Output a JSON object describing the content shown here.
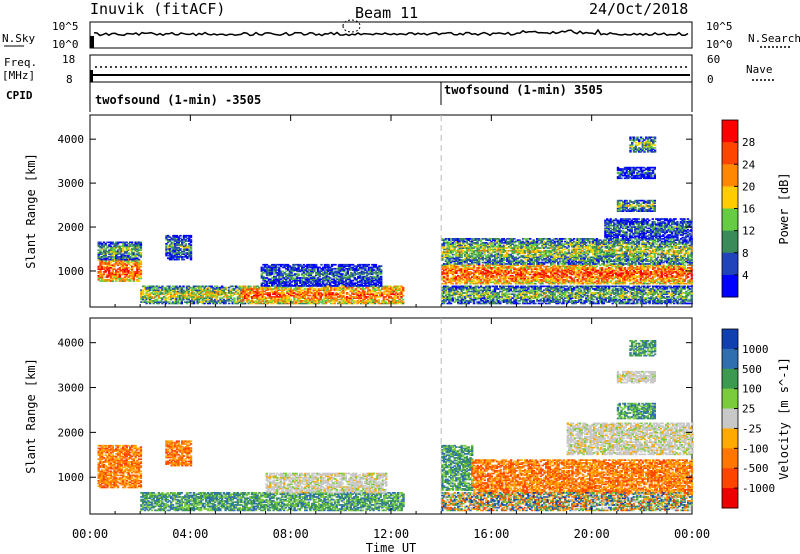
{
  "header": {
    "station": "Inuvik (fitACF)",
    "beam": "Beam 11",
    "date": "24/Oct/2018"
  },
  "panels": {
    "nsky": {
      "left_label": "N.Sky",
      "left_ticks": [
        "10^5",
        "10^0"
      ],
      "right_ticks": [
        "10^5",
        "10^0"
      ],
      "right_label": "N.Search"
    },
    "freq": {
      "left_label_1": "Freq.",
      "left_label_2": "[MHz]",
      "left_ticks": [
        "18",
        "8"
      ],
      "right_ticks": [
        "60",
        "0"
      ],
      "right_label": "Nave"
    },
    "cpid": {
      "label": "CPID",
      "segments": [
        {
          "label": "twofsound (1-min) -3505",
          "start_hour": 0
        },
        {
          "label": "twofsound (1-min) 3505",
          "start_hour": 14
        }
      ]
    }
  },
  "chart_data": [
    {
      "type": "heatmap",
      "title": "",
      "ylabel": "Slant Range [km]",
      "xlabel": "",
      "x_range_hours": [
        0,
        24
      ],
      "ylim": [
        180,
        4550
      ],
      "y_ticks": [
        1000,
        2000,
        3000,
        4000
      ],
      "colorbar": {
        "label": "Power [dB]",
        "range": [
          0,
          32
        ],
        "ticks": [
          4,
          8,
          12,
          16,
          20,
          24,
          28
        ],
        "colors": [
          "#0000ff",
          "#2244bb",
          "#3b8a5a",
          "#66cc44",
          "#ffcc00",
          "#ff8800",
          "#ff4400",
          "#ff0000"
        ]
      },
      "echo_regions": [
        {
          "start": 0.3,
          "end": 2.0,
          "r_lo": 760,
          "r_hi": 1250,
          "level": 0.85
        },
        {
          "start": 0.3,
          "end": 2.0,
          "r_lo": 1250,
          "r_hi": 1650,
          "level": 0.45
        },
        {
          "start": 3.0,
          "end": 4.0,
          "r_lo": 1250,
          "r_hi": 1800,
          "level": 0.35
        },
        {
          "start": 2.0,
          "end": 6.2,
          "r_lo": 250,
          "r_hi": 650,
          "level": 0.55
        },
        {
          "start": 6.0,
          "end": 12.5,
          "r_lo": 250,
          "r_hi": 650,
          "level": 0.8
        },
        {
          "start": 6.8,
          "end": 11.6,
          "r_lo": 650,
          "r_hi": 1150,
          "level": 0.3
        },
        {
          "start": 14.0,
          "end": 24.0,
          "r_lo": 700,
          "r_hi": 1150,
          "level": 0.85
        },
        {
          "start": 14.0,
          "end": 24.0,
          "r_lo": 1150,
          "r_hi": 1750,
          "level": 0.5
        },
        {
          "start": 14.0,
          "end": 24.0,
          "r_lo": 250,
          "r_hi": 650,
          "level": 0.45
        },
        {
          "start": 20.5,
          "end": 24.0,
          "r_lo": 1750,
          "r_hi": 2200,
          "level": 0.3
        },
        {
          "start": 21.0,
          "end": 22.5,
          "r_lo": 2350,
          "r_hi": 2600,
          "level": 0.45
        },
        {
          "start": 21.0,
          "end": 22.5,
          "r_lo": 3100,
          "r_hi": 3350,
          "level": 0.25
        },
        {
          "start": 21.5,
          "end": 22.5,
          "r_lo": 3700,
          "r_hi": 4050,
          "level": 0.45
        }
      ]
    },
    {
      "type": "heatmap",
      "title": "",
      "ylabel": "Slant Range [km]",
      "xlabel": "Time UT",
      "x_ticks": [
        "00:00",
        "04:00",
        "08:00",
        "12:00",
        "16:00",
        "20:00",
        "00:00"
      ],
      "x_range_hours": [
        0,
        24
      ],
      "ylim": [
        180,
        4550
      ],
      "y_ticks": [
        1000,
        2000,
        3000,
        4000
      ],
      "colorbar": {
        "label": "Velocity [m s^-1]",
        "ticks": [
          "1000",
          "500",
          "100",
          "25",
          "-25",
          "-100",
          "-500",
          "-1000"
        ],
        "colors": [
          "#1040b0",
          "#2f6fb0",
          "#3c9a50",
          "#7acc3c",
          "#c8c8c8",
          "#ffaa00",
          "#ff7700",
          "#ff4400",
          "#ee0000"
        ]
      },
      "echo_regions": [
        {
          "start": 0.3,
          "end": 2.0,
          "r_lo": 760,
          "r_hi": 1700,
          "class": "negative"
        },
        {
          "start": 3.0,
          "end": 4.0,
          "r_lo": 1250,
          "r_hi": 1800,
          "class": "negative"
        },
        {
          "start": 2.0,
          "end": 6.5,
          "r_lo": 250,
          "r_hi": 650,
          "class": "positive"
        },
        {
          "start": 6.5,
          "end": 12.5,
          "r_lo": 250,
          "r_hi": 650,
          "class": "positive"
        },
        {
          "start": 7.0,
          "end": 11.8,
          "r_lo": 650,
          "r_hi": 1100,
          "class": "near_zero"
        },
        {
          "start": 14.0,
          "end": 15.2,
          "r_lo": 700,
          "r_hi": 1700,
          "class": "positive"
        },
        {
          "start": 15.2,
          "end": 24.0,
          "r_lo": 650,
          "r_hi": 1400,
          "class": "negative"
        },
        {
          "start": 14.0,
          "end": 24.0,
          "r_lo": 250,
          "r_hi": 650,
          "class": "mixed"
        },
        {
          "start": 19.0,
          "end": 24.0,
          "r_lo": 1500,
          "r_hi": 2200,
          "class": "near_zero"
        },
        {
          "start": 21.0,
          "end": 22.5,
          "r_lo": 2300,
          "r_hi": 2650,
          "class": "positive"
        },
        {
          "start": 21.0,
          "end": 22.5,
          "r_lo": 3100,
          "r_hi": 3350,
          "class": "near_zero"
        },
        {
          "start": 21.5,
          "end": 22.5,
          "r_lo": 3700,
          "r_hi": 4050,
          "class": "positive"
        }
      ]
    }
  ]
}
